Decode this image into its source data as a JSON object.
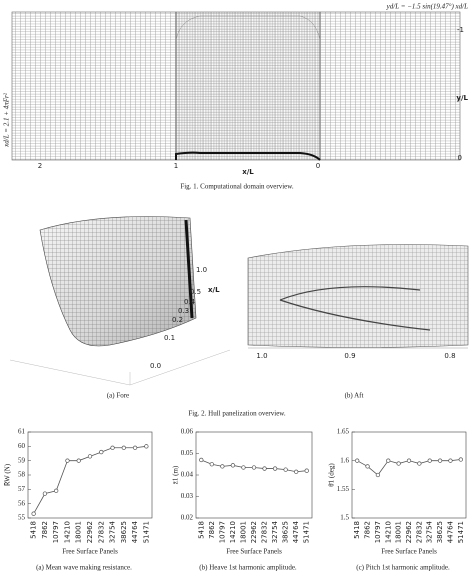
{
  "figure1": {
    "annotation_top": "yd/L = −1.5 sin(19.47°) xd/L",
    "annotation_left": "xd/L = 2.1 + 4πFr²",
    "right_top": "-1",
    "right_bottom": "0",
    "y_label": "y/L",
    "x_label": "x/L",
    "bottom_left": "2",
    "bottom_mid": "1",
    "bottom_right": "0",
    "caption": "Fig. 1. Computational domain overview."
  },
  "figure2": {
    "fore_ticks": [
      "1.0",
      "0.5",
      "0.4",
      "0.3",
      "0.2",
      "0.1",
      "0.0"
    ],
    "fore_axis": "x/L",
    "aft_ticks": [
      "1.0",
      "0.9",
      "0.8"
    ],
    "caption_a": "(a) Fore",
    "caption_b": "(b) Aft",
    "caption": "Fig. 2. Hull panelization overview."
  },
  "chart_data": [
    {
      "type": "line",
      "caption": "(a) Mean wave making resistance.",
      "x_label": "Free Surface Panels",
      "y_label": "R̄W (N)",
      "color": "#555555",
      "categories": [
        "5418",
        "7862",
        "10797",
        "14210",
        "18001",
        "22962",
        "27832",
        "32754",
        "38625",
        "44764",
        "51471"
      ],
      "values": [
        55.3,
        56.7,
        56.9,
        59.0,
        59.0,
        59.3,
        59.6,
        59.9,
        59.9,
        59.9,
        60.0
      ],
      "ylim": [
        55,
        61
      ],
      "yticks": [
        55,
        56,
        57,
        58,
        59,
        60,
        61
      ]
    },
    {
      "type": "line",
      "caption": "(b) Heave 1st harmonic amplitude.",
      "x_label": "Free Surface Panels",
      "y_label": "z̄1 (m)",
      "color": "#555555",
      "categories": [
        "5418",
        "7862",
        "10797",
        "14210",
        "18001",
        "22962",
        "27832",
        "32754",
        "38625",
        "44764",
        "51471"
      ],
      "values": [
        0.047,
        0.045,
        0.044,
        0.0445,
        0.0435,
        0.0435,
        0.043,
        0.043,
        0.0425,
        0.0415,
        0.042
      ],
      "ylim": [
        0.02,
        0.06
      ],
      "yticks": [
        0.02,
        0.03,
        0.04,
        0.05,
        0.06
      ]
    },
    {
      "type": "line",
      "caption": "(c) Pitch 1st harmonic amplitude.",
      "x_label": "Free Surface Panels",
      "y_label": "θ̄1 (deg)",
      "color": "#555555",
      "categories": [
        "5418",
        "7862",
        "10797",
        "14210",
        "18001",
        "22962",
        "27832",
        "32754",
        "38625",
        "44764",
        "51471"
      ],
      "values": [
        1.6,
        1.59,
        1.575,
        1.6,
        1.595,
        1.6,
        1.595,
        1.6,
        1.6,
        1.6,
        1.602
      ],
      "ylim": [
        1.5,
        1.65
      ],
      "yticks": [
        1.5,
        1.55,
        1.6,
        1.65
      ]
    }
  ]
}
